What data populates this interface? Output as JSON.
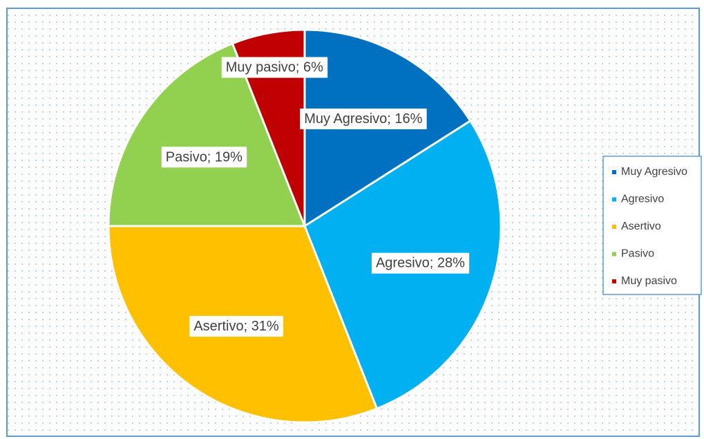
{
  "chart_data": {
    "type": "pie",
    "categories": [
      "Muy Agresivo",
      "Agresivo",
      "Asertivo",
      "Pasivo",
      "Muy pasivo"
    ],
    "values": [
      16,
      28,
      31,
      19,
      6
    ],
    "value_labels": [
      "Muy Agresivo; 16%",
      "Agresivo; 28%",
      "Asertivo; 31%",
      "Pasivo; 19%",
      "Muy pasivo; 6%"
    ],
    "colors": [
      "#0070c0",
      "#00b0f0",
      "#ffc000",
      "#92d050",
      "#c00000"
    ],
    "legend": "right"
  }
}
